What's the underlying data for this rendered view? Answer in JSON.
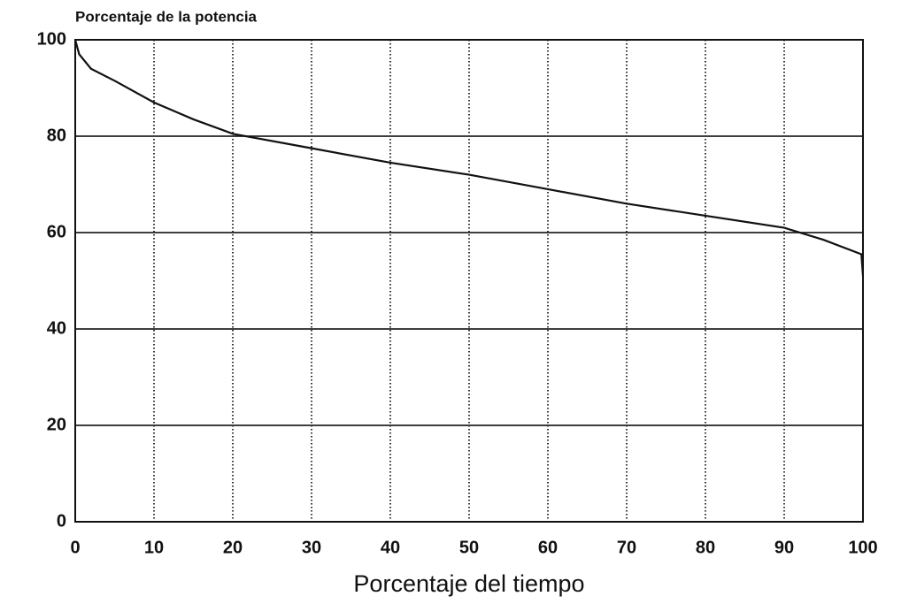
{
  "chart_data": {
    "type": "line",
    "title": "Porcentaje de la potencia",
    "x_label": "Porcentaje del tiempo",
    "x": [
      0,
      0.5,
      2,
      5,
      10,
      15,
      20,
      30,
      40,
      50,
      60,
      70,
      80,
      90,
      95,
      99.8,
      100
    ],
    "values": [
      100,
      97,
      94,
      91.5,
      87,
      83.5,
      80.5,
      77.5,
      74.5,
      72,
      69,
      66,
      63.5,
      61,
      58.5,
      55.5,
      51
    ],
    "color": "#111111",
    "xlim": [
      0,
      100
    ],
    "xticks": [
      0,
      10,
      20,
      30,
      40,
      50,
      60,
      70,
      80,
      90,
      100
    ],
    "ylim": [
      0,
      100
    ],
    "yticks": [
      0,
      20,
      40,
      60,
      80,
      100
    ],
    "grid": true
  }
}
